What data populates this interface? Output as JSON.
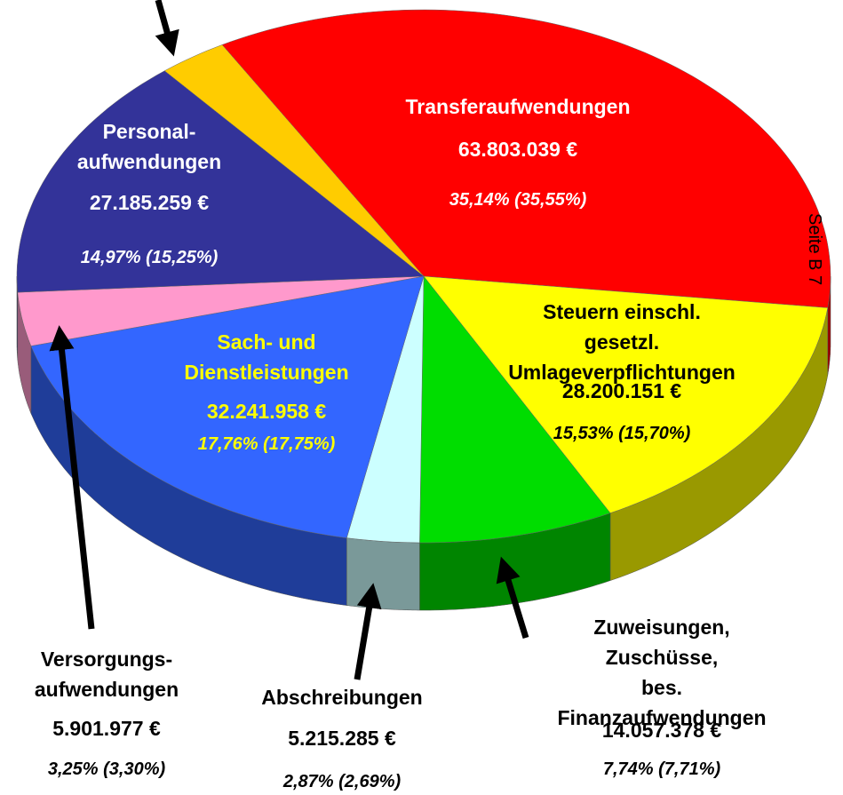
{
  "chart_data": {
    "type": "pie3d",
    "categories": [
      "Transferaufwendungen",
      "Steuern einschl. gesetzl.\nUmlageverpflichtungen",
      "Zuweisungen, Zuschüsse,\nbes. Finanzaufwendungen",
      "Abschreibungen",
      "Sach- und\nDienstleistungen",
      "Versorgungs-\naufwendungen",
      "Personal-\naufwendungen",
      null
    ],
    "values": [
      63803039,
      28200151,
      14057378,
      5215285,
      32241958,
      5901977,
      27185259,
      4975000
    ],
    "value_labels": [
      "63.803.039 €",
      "28.200.151 €",
      "14.057.378 €",
      "5.215.285 €",
      "32.241.958 €",
      "5.901.977 €",
      "27.185.259 €",
      null
    ],
    "percent_labels": [
      "35,14% (35,55%)",
      "15,53% (15,70%)",
      "7,74% (7,71%)",
      "2,87% (2,69%)",
      "17,76% (17,75%)",
      "3,25% (3,30%)",
      "14,97% (15,25%)",
      null
    ],
    "colors": [
      "#ff0000",
      "#ffff00",
      "#00dd00",
      "#ccffff",
      "#3366ff",
      "#ff99cc",
      "#333399",
      "#ffcc00"
    ],
    "page_label": "Seite B 7"
  }
}
